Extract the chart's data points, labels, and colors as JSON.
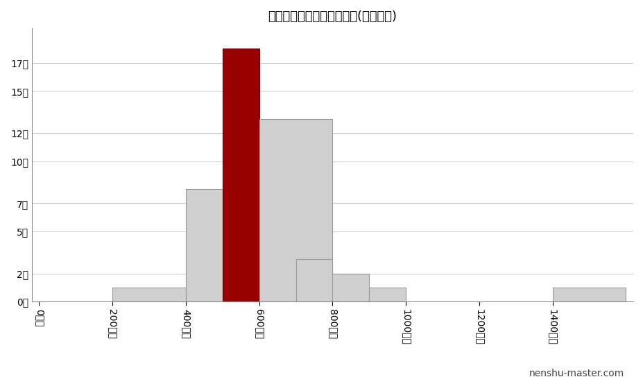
{
  "title": "岡山製紙の年收ポジション(製紙業内)",
  "watermark": "nenshu-master.com",
  "bar_lefts": [
    200,
    400,
    500,
    600,
    700,
    800,
    900,
    1400
  ],
  "bar_widths": [
    200,
    100,
    100,
    200,
    100,
    100,
    100,
    200
  ],
  "bar_heights": [
    1,
    8,
    18,
    13,
    3,
    2,
    1,
    1
  ],
  "bar_colors": [
    "#d0d0d0",
    "#d0d0d0",
    "#990000",
    "#d0d0d0",
    "#d0d0d0",
    "#d0d0d0",
    "#d0d0d0",
    "#d0d0d0"
  ],
  "bar_edgecolors": [
    "#999999",
    "#999999",
    "#770000",
    "#999999",
    "#999999",
    "#999999",
    "#999999",
    "#999999"
  ],
  "yticks": [
    0,
    2,
    5,
    7,
    10,
    12,
    15,
    17
  ],
  "ytick_labels": [
    "0社",
    "2社",
    "5社",
    "7社",
    "10社",
    "12社",
    "15社",
    "17社"
  ],
  "xticks": [
    0,
    200,
    400,
    600,
    800,
    1000,
    1200,
    1400
  ],
  "xtick_labels": [
    "0万円",
    "200万円",
    "400万円",
    "600万円",
    "800万円",
    "1000万円",
    "1200万円",
    "1400万円"
  ],
  "xlim": [
    -20,
    1620
  ],
  "ylim": [
    0,
    19.5
  ],
  "background_color": "#ffffff",
  "grid_color": "#cccccc",
  "title_fontsize": 13,
  "tick_fontsize": 10,
  "watermark_fontsize": 10
}
